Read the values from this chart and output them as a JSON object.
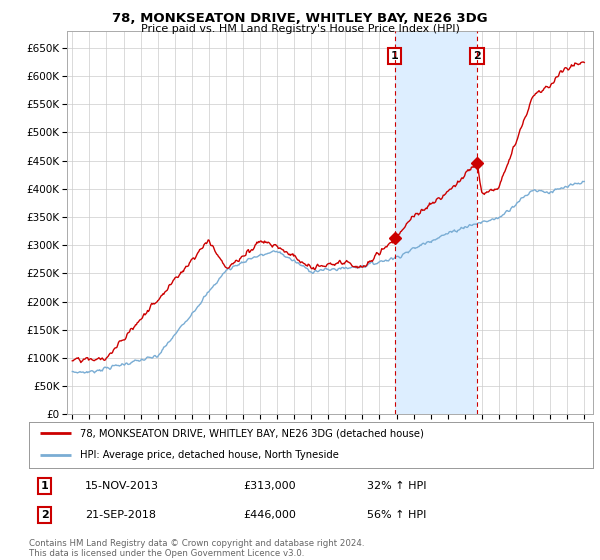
{
  "title": "78, MONKSEATON DRIVE, WHITLEY BAY, NE26 3DG",
  "subtitle": "Price paid vs. HM Land Registry's House Price Index (HPI)",
  "ylim": [
    0,
    680000
  ],
  "yticks": [
    0,
    50000,
    100000,
    150000,
    200000,
    250000,
    300000,
    350000,
    400000,
    450000,
    500000,
    550000,
    600000,
    650000
  ],
  "hpi_color": "#7aadd4",
  "price_color": "#cc0000",
  "shade_color": "#ddeeff",
  "marker1_date": 2013.88,
  "marker1_price": 313000,
  "marker1_label": "1",
  "marker1_text": "15-NOV-2013",
  "marker1_value": "£313,000",
  "marker1_pct": "32% ↑ HPI",
  "marker2_date": 2018.72,
  "marker2_price": 446000,
  "marker2_label": "2",
  "marker2_text": "21-SEP-2018",
  "marker2_value": "£446,000",
  "marker2_pct": "56% ↑ HPI",
  "legend_line1": "78, MONKSEATON DRIVE, WHITLEY BAY, NE26 3DG (detached house)",
  "legend_line2": "HPI: Average price, detached house, North Tyneside",
  "footer": "Contains HM Land Registry data © Crown copyright and database right 2024.\nThis data is licensed under the Open Government Licence v3.0.",
  "bg_color": "#ffffff",
  "grid_color": "#cccccc"
}
